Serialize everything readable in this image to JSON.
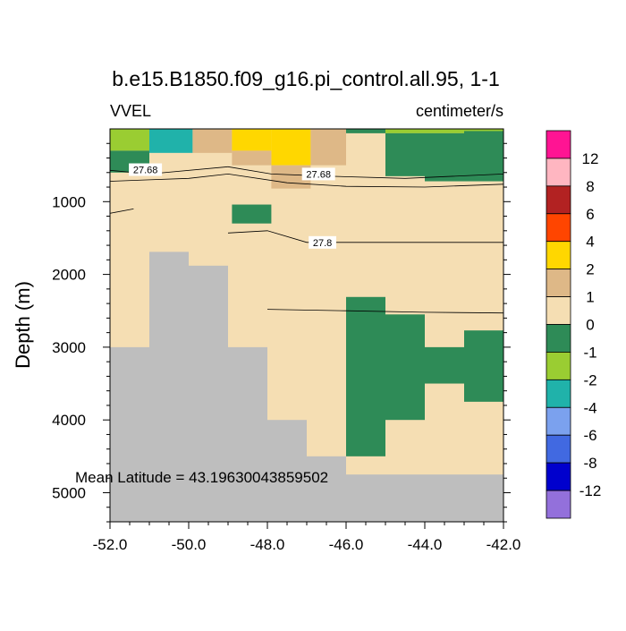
{
  "chart_data": {
    "type": "heatmap",
    "title": "b.e15.B1850.f09_g16.pi_control.all.95, 1-1",
    "left_label": "VVEL",
    "right_label": "centimeter/s",
    "ylabel": "Depth (m)",
    "annotation": "Mean Latitude = 43.19630043859502",
    "xlim": [
      -52.0,
      -42.0
    ],
    "ylim": [
      0,
      5400
    ],
    "x_ticks": [
      "-52.0",
      "-50.0",
      "-48.0",
      "-46.0",
      "-44.0",
      "-42.0"
    ],
    "x_tick_values": [
      -52,
      -50,
      -48,
      -46,
      -44,
      -42
    ],
    "y_ticks": [
      "1000",
      "2000",
      "3000",
      "4000",
      "5000"
    ],
    "y_tick_values": [
      1000,
      2000,
      3000,
      4000,
      5000
    ],
    "colorbar": {
      "labels": [
        "12",
        "8",
        "6",
        "4",
        "2",
        "1",
        "0",
        "-1",
        "-2",
        "-4",
        "-6",
        "-8",
        "-12"
      ],
      "colors": [
        "#ff1493",
        "#ffb6c1",
        "#b22222",
        "#ff4500",
        "#ffd700",
        "#deb887",
        "#f5deb3",
        "#2e8b57",
        "#9acd32",
        "#20b2aa",
        "#7ba1ee",
        "#4169e1",
        "#0000cd",
        "#9370db"
      ]
    },
    "background_value": "0 to 1",
    "cells": [
      {
        "x0": -52,
        "x1": -51,
        "y0": 0,
        "y1": 300,
        "category": "-2 to -1"
      },
      {
        "x0": -52,
        "x1": -51,
        "y0": 300,
        "y1": 600,
        "category": "-1 to 0"
      },
      {
        "x0": -51,
        "x1": -49.9,
        "y0": 0,
        "y1": 330,
        "category": "-4 to -2"
      },
      {
        "x0": -49.9,
        "x1": -48.9,
        "y0": 0,
        "y1": 330,
        "category": "1 to 2"
      },
      {
        "x0": -48.9,
        "x1": -47.9,
        "y0": 0,
        "y1": 300,
        "category": "2 to 4"
      },
      {
        "x0": -47.9,
        "x1": -46.9,
        "y0": 0,
        "y1": 500,
        "category": "2 to 4"
      },
      {
        "x0": -46.9,
        "x1": -46.0,
        "y0": 0,
        "y1": 500,
        "category": "1 to 2"
      },
      {
        "x0": -48.9,
        "x1": -47.9,
        "y0": 300,
        "y1": 500,
        "category": "1 to 2"
      },
      {
        "x0": -47.9,
        "x1": -46.9,
        "y0": 500,
        "y1": 820,
        "category": "1 to 2"
      },
      {
        "x0": -46.0,
        "x1": -45.0,
        "y0": 0,
        "y1": 60,
        "category": "-1 to 0"
      },
      {
        "x0": -45.0,
        "x1": -44.0,
        "y0": 0,
        "y1": 60,
        "category": "-2 to -1"
      },
      {
        "x0": -44.0,
        "x1": -42.0,
        "y0": 0,
        "y1": 60,
        "category": "-2 to -1"
      },
      {
        "x0": -45.0,
        "x1": -44.0,
        "y0": 60,
        "y1": 650,
        "category": "-1 to 0"
      },
      {
        "x0": -44.0,
        "x1": -43.0,
        "y0": 60,
        "y1": 720,
        "category": "-1 to 0"
      },
      {
        "x0": -43.0,
        "x1": -42.0,
        "y0": 30,
        "y1": 720,
        "category": "-1 to 0"
      },
      {
        "x0": -48.9,
        "x1": -47.9,
        "y0": 1040,
        "y1": 1300,
        "category": "-1 to 0"
      },
      {
        "x0": -46.0,
        "x1": -45.0,
        "y0": 2310,
        "y1": 4500,
        "category": "-1 to 0"
      },
      {
        "x0": -45.0,
        "x1": -44.0,
        "y0": 2550,
        "y1": 4000,
        "category": "-1 to 0"
      },
      {
        "x0": -44.0,
        "x1": -43.0,
        "y0": 3000,
        "y1": 3500,
        "category": "-1 to 0"
      },
      {
        "x0": -43.0,
        "x1": -42.0,
        "y0": 2770,
        "y1": 3750,
        "category": "-1 to 0"
      }
    ],
    "bathymetry": [
      {
        "x0": -52,
        "x1": -51,
        "depth": 3000
      },
      {
        "x0": -51,
        "x1": -50,
        "depth": 1690
      },
      {
        "x0": -50,
        "x1": -49,
        "depth": 1880
      },
      {
        "x0": -49,
        "x1": -48,
        "depth": 3000
      },
      {
        "x0": -48,
        "x1": -47,
        "depth": 4000
      },
      {
        "x0": -47,
        "x1": -46,
        "depth": 4500
      },
      {
        "x0": -46,
        "x1": -42,
        "depth": 4750
      }
    ],
    "contours": [
      {
        "label": "27.68",
        "points": [
          [
            -52,
            570
          ],
          [
            -51,
            620
          ],
          [
            -49,
            520
          ],
          [
            -47.9,
            620
          ],
          [
            -46.5,
            650
          ],
          [
            -44.5,
            680
          ],
          [
            -42,
            620
          ]
        ],
        "label_at": [
          -51.1,
          560
        ]
      },
      {
        "label": "27.68",
        "points": [
          [
            -52,
            720
          ],
          [
            -51,
            700
          ],
          [
            -50,
            680
          ],
          [
            -49,
            620
          ],
          [
            -47.5,
            740
          ],
          [
            -46,
            790
          ],
          [
            -44,
            800
          ],
          [
            -42,
            760
          ]
        ],
        "label_at": [
          -46.7,
          620
        ]
      },
      {
        "label": "",
        "points": [
          [
            -52,
            1160
          ],
          [
            -51.4,
            1100
          ]
        ],
        "label_at": null
      },
      {
        "label": "27.8",
        "points": [
          [
            -49,
            1430
          ],
          [
            -48,
            1400
          ],
          [
            -47,
            1560
          ],
          [
            -45,
            1560
          ],
          [
            -42,
            1560
          ]
        ],
        "label_at": [
          -46.6,
          1560
        ]
      },
      {
        "label": "",
        "points": [
          [
            -48,
            2480
          ],
          [
            -46,
            2500
          ],
          [
            -44,
            2520
          ],
          [
            -42,
            2530
          ]
        ],
        "label_at": null
      }
    ]
  }
}
